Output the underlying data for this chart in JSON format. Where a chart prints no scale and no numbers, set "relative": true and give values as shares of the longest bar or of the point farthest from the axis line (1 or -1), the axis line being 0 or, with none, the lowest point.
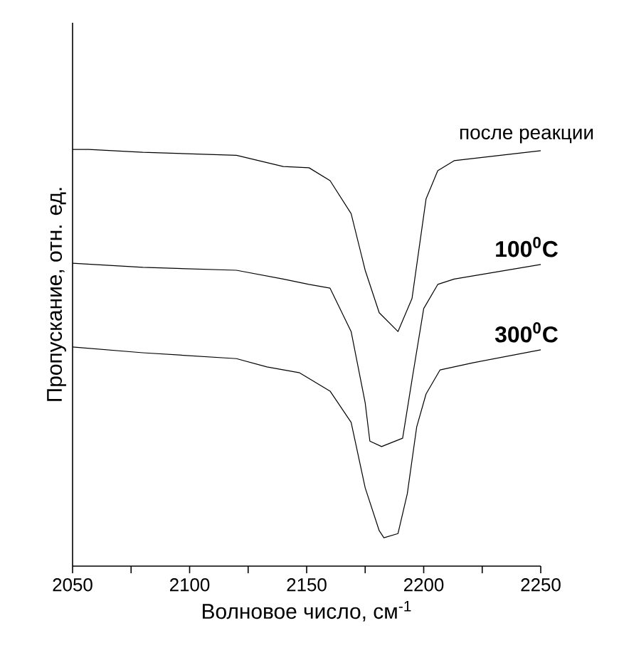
{
  "chart_data": {
    "type": "line",
    "xlabel": "Волновое число, см$^{-1}$",
    "ylabel": "Пропускание, отн. ед.",
    "relative": true,
    "xlim": [
      2050,
      2250
    ],
    "xticks": [
      2050,
      {
        "value": 2075,
        "label": null
      },
      2100,
      {
        "value": 2125,
        "label": null
      },
      2150,
      {
        "value": 2175,
        "label": null
      },
      2200,
      {
        "value": 2225,
        "label": null
      },
      2250
    ],
    "marker": "none",
    "line_style": "solid",
    "legend": false,
    "grid": false,
    "series": [
      {
        "name": "после реакции",
        "color": "#000000",
        "x": [
          2050,
          2057,
          2080,
          2120,
          2140,
          2151,
          2160,
          2169,
          2175,
          2181,
          2189,
          2195,
          2201,
          2206,
          2213,
          2250
        ],
        "values": [
          1.0,
          1.0,
          0.993,
          0.986,
          0.959,
          0.956,
          0.925,
          0.846,
          0.71,
          0.608,
          0.563,
          0.642,
          0.881,
          0.949,
          0.973,
          0.997
        ]
      },
      {
        "name": "100$^{0}$C",
        "color": "#000000",
        "x": [
          2050,
          2080,
          2120,
          2140,
          2151,
          2160,
          2169,
          2175,
          2177,
          2182,
          2191,
          2195,
          2200,
          2206,
          2213,
          2250
        ],
        "values": [
          0.727,
          0.717,
          0.71,
          0.689,
          0.676,
          0.667,
          0.563,
          0.392,
          0.3,
          0.287,
          0.307,
          0.447,
          0.618,
          0.676,
          0.689,
          0.724
        ]
      },
      {
        "name": "300$^{0}$C",
        "color": "#000000",
        "x": [
          2050,
          2080,
          2120,
          2133,
          2147,
          2160,
          2169,
          2175,
          2181,
          2183,
          2189,
          2193,
          2197,
          2201,
          2207,
          2221,
          2250
        ],
        "values": [
          0.526,
          0.512,
          0.498,
          0.478,
          0.464,
          0.42,
          0.345,
          0.188,
          0.085,
          0.068,
          0.078,
          0.174,
          0.334,
          0.413,
          0.471,
          0.488,
          0.519
        ]
      }
    ]
  }
}
